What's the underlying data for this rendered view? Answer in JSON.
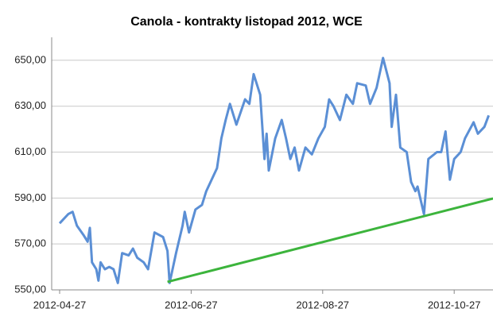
{
  "chart_data": {
    "type": "line",
    "title": "Canola - kontrakty listopad 2012, WCE",
    "xlim": [
      "2012-04-27",
      "2012-11-14"
    ],
    "xticks": [
      "2012-04-27",
      "2012-06-27",
      "2012-08-27",
      "2012-10-27"
    ],
    "ylim": [
      550,
      660
    ],
    "yticks": [
      {
        "value": 550,
        "label": "550,00"
      },
      {
        "value": 570,
        "label": "570,00"
      },
      {
        "value": 590,
        "label": "590,00"
      },
      {
        "value": 610,
        "label": "610,00"
      },
      {
        "value": 630,
        "label": "630,00"
      },
      {
        "value": 650,
        "label": "650,00"
      }
    ],
    "grid": true,
    "series": [
      {
        "color": "#5b8fd5",
        "x": [
          "2012-04-27",
          "2012-05-01",
          "2012-05-03",
          "2012-05-05",
          "2012-05-08",
          "2012-05-10",
          "2012-05-11",
          "2012-05-12",
          "2012-05-14",
          "2012-05-15",
          "2012-05-16",
          "2012-05-18",
          "2012-05-20",
          "2012-05-22",
          "2012-05-24",
          "2012-05-26",
          "2012-05-29",
          "2012-05-31",
          "2012-06-02",
          "2012-06-05",
          "2012-06-07",
          "2012-06-10",
          "2012-06-14",
          "2012-06-16",
          "2012-06-17",
          "2012-06-20",
          "2012-06-23",
          "2012-06-24",
          "2012-06-26",
          "2012-06-29",
          "2012-07-02",
          "2012-07-04",
          "2012-07-09",
          "2012-07-11",
          "2012-07-13",
          "2012-07-15",
          "2012-07-18",
          "2012-07-22",
          "2012-07-24",
          "2012-07-26",
          "2012-07-29",
          "2012-07-31",
          "2012-08-01",
          "2012-08-02",
          "2012-08-05",
          "2012-08-08",
          "2012-08-10",
          "2012-08-12",
          "2012-08-14",
          "2012-08-16",
          "2012-08-19",
          "2012-08-22",
          "2012-08-25",
          "2012-08-28",
          "2012-08-30",
          "2012-09-01",
          "2012-09-04",
          "2012-09-07",
          "2012-09-10",
          "2012-09-12",
          "2012-09-16",
          "2012-09-18",
          "2012-09-21",
          "2012-09-24",
          "2012-09-27",
          "2012-09-28",
          "2012-09-30",
          "2012-10-02",
          "2012-10-05",
          "2012-10-07",
          "2012-10-09",
          "2012-10-10",
          "2012-10-13",
          "2012-10-15",
          "2012-10-19",
          "2012-10-21",
          "2012-10-23",
          "2012-10-25",
          "2012-10-27",
          "2012-10-30",
          "2012-11-01",
          "2012-11-05",
          "2012-11-07",
          "2012-11-10",
          "2012-11-12"
        ],
        "values": [
          579,
          583,
          584,
          578,
          574,
          571,
          577,
          562,
          559,
          554,
          562,
          559,
          560,
          559,
          553,
          566,
          565,
          568,
          564,
          562,
          559,
          575,
          573,
          567,
          553,
          566,
          578,
          584,
          575,
          585,
          587,
          593,
          603,
          616,
          624,
          631,
          622,
          633,
          631,
          644,
          635,
          607,
          618,
          602,
          616,
          624,
          616,
          607,
          612,
          602,
          612,
          609,
          616,
          621,
          633,
          630,
          624,
          635,
          631,
          640,
          639,
          631,
          638,
          651,
          640,
          621,
          635,
          612,
          610,
          597,
          593,
          595,
          583,
          607,
          610,
          610,
          619,
          598,
          607,
          610,
          616,
          623,
          618,
          621,
          626
        ]
      },
      {
        "color": "#3cb43c",
        "x": [
          "2012-06-16",
          "2012-11-14"
        ],
        "values": [
          553.5,
          589.8
        ]
      }
    ]
  }
}
